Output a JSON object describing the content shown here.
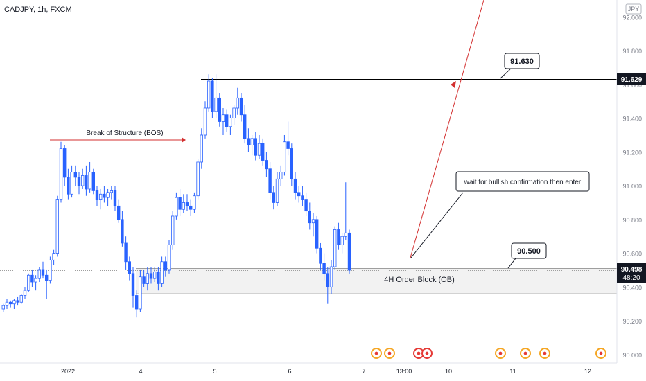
{
  "header": {
    "symbol": "CADJPY, 1h, FXCM",
    "currency": "JPY"
  },
  "price_labels": {
    "current": "90.498",
    "countdown": "48:20",
    "level": "91.629"
  },
  "annotations": {
    "bos": "Break of Structure (BOS)",
    "ob": "4H Order Block  (OB)",
    "wait": "wait for bullish confirmation then enter",
    "callout_high": "91.630",
    "callout_low": "90.500"
  },
  "colors": {
    "up_body": "#ffffff",
    "down_body": "#2962ff",
    "candle_border": "#2962ff",
    "resistance_line": "#000000",
    "arrow": "#d32f2f",
    "zone_fill": "#f2f2f2",
    "event_orange": "#f5a623",
    "event_red": "#e53935"
  },
  "events": [
    "event-icon",
    "event-icon",
    "event-icon",
    "event-icon",
    "canada-flag-event-icon",
    "event-icon",
    "event-icon",
    "event-icon"
  ],
  "chart_data": {
    "type": "candlestick",
    "ylim": [
      89.95,
      92.1
    ],
    "y_ticks": [
      "90.000",
      "90.200",
      "90.400",
      "90.600",
      "90.800",
      "91.000",
      "91.200",
      "91.400",
      "91.600",
      "91.800",
      "92.000"
    ],
    "x_ticks": [
      "2022",
      "4",
      "5",
      "6",
      "7",
      "13:00",
      "10",
      "11",
      "12"
    ],
    "resistance": 91.629,
    "order_block": [
      90.36,
      90.51
    ],
    "current_price": 90.498,
    "series": [
      {
        "values": [
          [
            90.27,
            90.3,
            90.25,
            90.29
          ],
          [
            90.29,
            90.33,
            90.27,
            90.31
          ],
          [
            90.31,
            90.32,
            90.28,
            90.3
          ],
          [
            90.3,
            90.33,
            90.27,
            90.32
          ],
          [
            90.32,
            90.34,
            90.29,
            90.31
          ],
          [
            90.31,
            90.36,
            90.3,
            90.35
          ],
          [
            90.35,
            90.4,
            90.33,
            90.38
          ],
          [
            90.38,
            90.48,
            90.37,
            90.47
          ],
          [
            90.47,
            90.5,
            90.4,
            90.43
          ],
          [
            90.43,
            90.47,
            90.38,
            90.45
          ],
          [
            90.45,
            90.52,
            90.43,
            90.5
          ],
          [
            90.5,
            90.55,
            90.45,
            90.47
          ],
          [
            90.47,
            90.5,
            90.33,
            90.44
          ],
          [
            90.44,
            90.58,
            90.42,
            90.56
          ],
          [
            90.56,
            90.62,
            90.53,
            90.6
          ],
          [
            90.6,
            90.94,
            90.58,
            90.92
          ],
          [
            90.92,
            91.26,
            90.9,
            91.22
          ],
          [
            91.22,
            91.24,
            91.0,
            91.05
          ],
          [
            91.05,
            91.1,
            90.92,
            90.95
          ],
          [
            90.95,
            91.12,
            90.93,
            91.08
          ],
          [
            91.08,
            91.12,
            91.0,
            91.05
          ],
          [
            91.05,
            91.08,
            90.95,
            91.0
          ],
          [
            91.0,
            91.1,
            90.98,
            91.06
          ],
          [
            91.06,
            91.12,
            90.94,
            90.98
          ],
          [
            90.98,
            91.14,
            90.96,
            91.08
          ],
          [
            91.08,
            91.1,
            90.95,
            90.97
          ],
          [
            90.97,
            91.0,
            90.88,
            90.92
          ],
          [
            90.92,
            90.98,
            90.86,
            90.95
          ],
          [
            90.95,
            91.0,
            90.9,
            90.93
          ],
          [
            90.93,
            90.98,
            90.88,
            90.96
          ],
          [
            90.96,
            91.0,
            90.92,
            90.97
          ],
          [
            90.97,
            91.0,
            90.85,
            90.88
          ],
          [
            90.88,
            90.92,
            90.78,
            90.8
          ],
          [
            90.8,
            90.85,
            90.64,
            90.66
          ],
          [
            90.66,
            90.7,
            90.5,
            90.55
          ],
          [
            90.55,
            90.58,
            90.44,
            90.48
          ],
          [
            90.48,
            90.52,
            90.28,
            90.35
          ],
          [
            90.35,
            90.38,
            90.22,
            90.27
          ],
          [
            90.27,
            90.5,
            90.25,
            90.46
          ],
          [
            90.46,
            90.5,
            90.4,
            90.42
          ],
          [
            90.42,
            90.52,
            90.38,
            90.48
          ],
          [
            90.48,
            90.52,
            90.42,
            90.45
          ],
          [
            90.45,
            90.52,
            90.43,
            90.49
          ],
          [
            90.49,
            90.52,
            90.38,
            90.42
          ],
          [
            90.42,
            90.58,
            90.4,
            90.55
          ],
          [
            90.55,
            90.58,
            90.46,
            90.5
          ],
          [
            90.5,
            90.68,
            90.48,
            90.65
          ],
          [
            90.65,
            90.85,
            90.62,
            90.82
          ],
          [
            90.82,
            90.96,
            90.8,
            90.93
          ],
          [
            90.93,
            90.98,
            90.82,
            90.86
          ],
          [
            90.86,
            90.95,
            90.84,
            90.9
          ],
          [
            90.9,
            90.95,
            90.85,
            90.88
          ],
          [
            90.88,
            90.92,
            90.82,
            90.86
          ],
          [
            90.86,
            90.96,
            90.84,
            90.94
          ],
          [
            90.94,
            91.16,
            90.92,
            91.14
          ],
          [
            91.14,
            91.34,
            91.1,
            91.3
          ],
          [
            91.3,
            91.5,
            91.28,
            91.46
          ],
          [
            91.46,
            91.66,
            91.44,
            91.62
          ],
          [
            91.62,
            91.64,
            91.4,
            91.44
          ],
          [
            91.44,
            91.66,
            91.4,
            91.52
          ],
          [
            91.52,
            91.55,
            91.35,
            91.38
          ],
          [
            91.38,
            91.46,
            91.3,
            91.42
          ],
          [
            91.42,
            91.45,
            91.32,
            91.35
          ],
          [
            91.35,
            91.42,
            91.3,
            91.4
          ],
          [
            91.4,
            91.48,
            91.36,
            91.46
          ],
          [
            91.46,
            91.58,
            91.42,
            91.52
          ],
          [
            91.52,
            91.55,
            91.38,
            91.42
          ],
          [
            91.42,
            91.48,
            91.25,
            91.28
          ],
          [
            91.28,
            91.34,
            91.2,
            91.24
          ],
          [
            91.24,
            91.3,
            91.18,
            91.28
          ],
          [
            91.28,
            91.32,
            91.15,
            91.18
          ],
          [
            91.18,
            91.3,
            91.16,
            91.25
          ],
          [
            91.25,
            91.28,
            91.12,
            91.15
          ],
          [
            91.15,
            91.2,
            91.05,
            91.1
          ],
          [
            91.1,
            91.14,
            90.92,
            90.96
          ],
          [
            90.96,
            91.0,
            90.86,
            90.9
          ],
          [
            90.9,
            91.08,
            90.88,
            91.04
          ],
          [
            91.04,
            91.12,
            91.0,
            91.08
          ],
          [
            91.08,
            91.3,
            91.06,
            91.26
          ],
          [
            91.26,
            91.38,
            91.18,
            91.22
          ],
          [
            91.22,
            91.25,
            91.0,
            91.04
          ],
          [
            91.04,
            91.08,
            90.92,
            90.96
          ],
          [
            90.96,
            91.0,
            90.9,
            90.94
          ],
          [
            90.94,
            91.0,
            90.88,
            90.92
          ],
          [
            90.92,
            90.96,
            90.82,
            90.85
          ],
          [
            90.85,
            90.9,
            90.74,
            90.78
          ],
          [
            90.78,
            90.84,
            90.7,
            90.8
          ],
          [
            90.8,
            90.82,
            90.6,
            90.63
          ],
          [
            90.63,
            90.66,
            90.5,
            90.54
          ],
          [
            90.54,
            90.6,
            90.44,
            90.48
          ],
          [
            90.48,
            90.52,
            90.3,
            90.4
          ],
          [
            90.4,
            90.56,
            90.36,
            90.52
          ],
          [
            90.52,
            90.76,
            90.5,
            90.74
          ],
          [
            90.74,
            90.78,
            90.62,
            90.65
          ],
          [
            90.65,
            90.72,
            90.6,
            90.7
          ],
          [
            90.7,
            91.02,
            90.68,
            90.72
          ],
          [
            90.72,
            90.74,
            90.48,
            90.5
          ]
        ]
      }
    ]
  }
}
